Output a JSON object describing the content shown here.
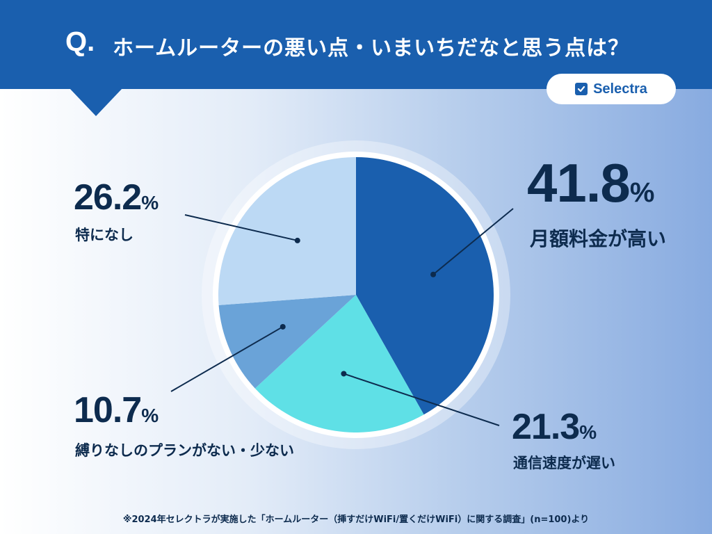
{
  "header": {
    "q_mark": "Q.",
    "title": "ホームルーターの悪い点・いまいちだなと思う点は？"
  },
  "logo": {
    "icon": "check-square-icon",
    "text": "Selectra"
  },
  "colors": {
    "header_bg": "#1a5fae",
    "slice_high_price": "#1a5fae",
    "slice_slow_speed": "#5fe0e6",
    "slice_no_binding": "#6aa3d8",
    "slice_none": "#bcd9f4"
  },
  "chart_data": {
    "type": "pie",
    "start_angle_deg": 0,
    "direction": "clockwise",
    "unit": "%",
    "slices": [
      {
        "label": "月額料金が高い",
        "value": 41.8,
        "value_text": "41.8",
        "color": "#1a5fae"
      },
      {
        "label": "通信速度が遅い",
        "value": 21.3,
        "value_text": "21.3",
        "color": "#5fe0e6"
      },
      {
        "label": "縛りなしのプランがない・少ない",
        "value": 10.7,
        "value_text": "10.7",
        "color": "#6aa3d8"
      },
      {
        "label": "特になし",
        "value": 26.2,
        "value_text": "26.2",
        "color": "#bcd9f4"
      }
    ]
  },
  "footnote": "※2024年セレクトラが実施した「ホームルーター（挿すだけWiFi/置くだけWiFi）に関する調査」(n=100)より"
}
